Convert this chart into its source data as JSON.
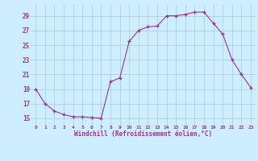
{
  "x": [
    0,
    1,
    2,
    3,
    4,
    5,
    6,
    7,
    8,
    9,
    10,
    11,
    12,
    13,
    14,
    15,
    16,
    17,
    18,
    19,
    20,
    21,
    22,
    23
  ],
  "y": [
    19,
    17,
    16,
    15.5,
    15.2,
    15.2,
    15.1,
    15,
    20,
    20.5,
    25.5,
    27,
    27.5,
    27.6,
    29,
    29,
    29.2,
    29.5,
    29.5,
    28,
    26.5,
    23,
    21,
    19.2
  ],
  "line_color": "#993399",
  "marker": "+",
  "bg_color": "#cceeff",
  "grid_color": "#aacccc",
  "xlabel": "Windchill (Refroidissement éolien,°C)",
  "xlabel_color": "#993399",
  "tick_color": "#993399",
  "xlim": [
    -0.5,
    23.5
  ],
  "ylim": [
    14.0,
    30.5
  ],
  "yticks": [
    15,
    17,
    19,
    21,
    23,
    25,
    27,
    29
  ],
  "xticks": [
    0,
    1,
    2,
    3,
    4,
    5,
    6,
    7,
    8,
    9,
    10,
    11,
    12,
    13,
    14,
    15,
    16,
    17,
    18,
    19,
    20,
    21,
    22,
    23
  ],
  "figsize": [
    3.2,
    2.0
  ],
  "dpi": 100
}
